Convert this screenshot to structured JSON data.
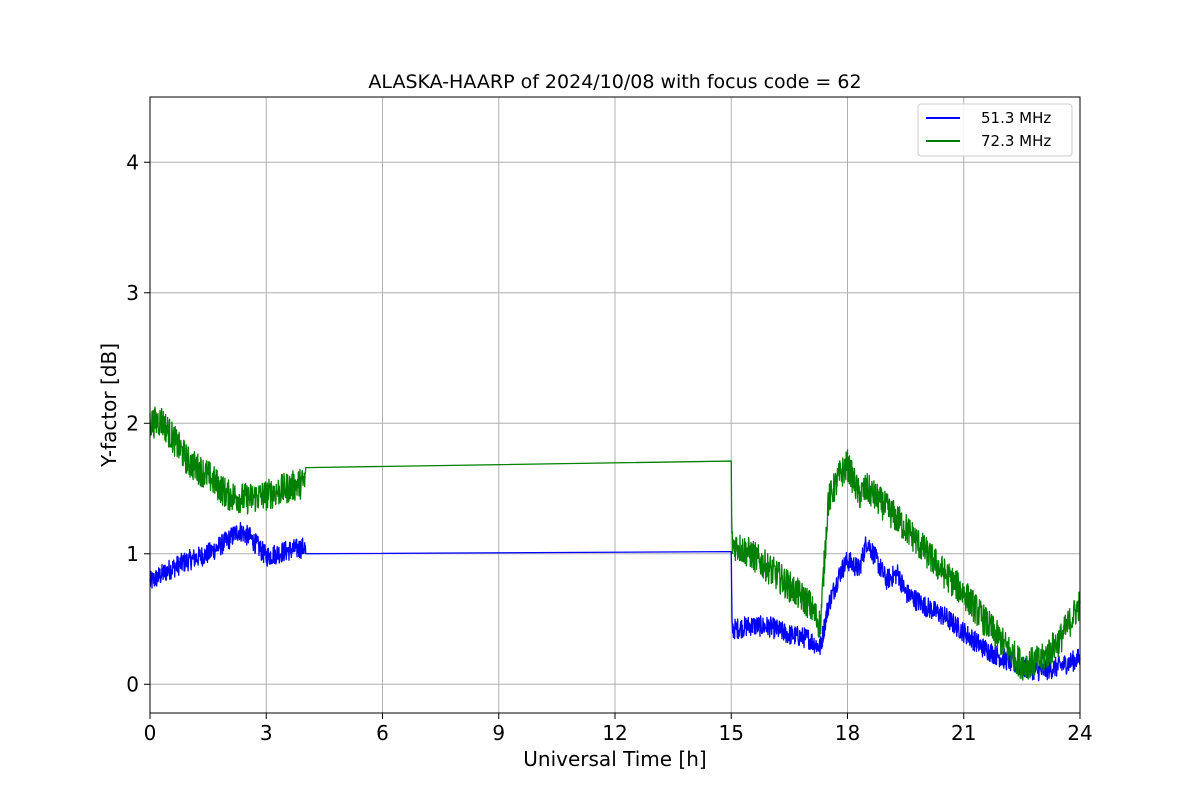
{
  "chart_data": {
    "type": "line",
    "title": "ALASKA-HAARP of 2024/10/08 with focus code = 62",
    "xlabel": "Universal Time [h]",
    "ylabel": "Y-factor [dB]",
    "xlim": [
      0,
      24
    ],
    "ylim": [
      -0.22,
      4.5
    ],
    "xticks": [
      "0",
      "3",
      "6",
      "9",
      "12",
      "15",
      "18",
      "21",
      "24"
    ],
    "yticks": [
      "0",
      "1",
      "2",
      "3",
      "4"
    ],
    "grid": true,
    "legend_position": "top-right",
    "series": [
      {
        "name": "51.3 MHz",
        "color": "#0000ff",
        "noise": 0.08,
        "x": [
          0,
          0.5,
          1,
          1.5,
          2,
          2.3,
          2.6,
          3,
          3.5,
          4,
          4.02,
          15,
          15.02,
          15.5,
          16,
          16.5,
          17,
          17.3,
          17.5,
          17.8,
          18,
          18.3,
          18.5,
          18.7,
          19,
          19.3,
          19.5,
          20,
          20.5,
          21,
          21.5,
          22,
          22.5,
          23,
          23.5,
          24
        ],
        "y": [
          0.78,
          0.88,
          0.95,
          1.0,
          1.1,
          1.18,
          1.12,
          0.98,
          1.02,
          1.05,
          1.0,
          0.99,
          0.42,
          0.45,
          0.44,
          0.38,
          0.35,
          0.28,
          0.6,
          0.85,
          0.95,
          0.88,
          1.1,
          0.98,
          0.8,
          0.85,
          0.7,
          0.6,
          0.52,
          0.4,
          0.28,
          0.2,
          0.13,
          0.1,
          0.14,
          0.2
        ]
      },
      {
        "name": "72.3 MHz",
        "color": "#008000",
        "noise": 0.12,
        "x": [
          0,
          0.3,
          0.6,
          1,
          1.5,
          2,
          2.5,
          3,
          3.5,
          4,
          4.02,
          15,
          15.02,
          15.5,
          16,
          16.5,
          17,
          17.3,
          17.5,
          17.8,
          18,
          18.3,
          18.5,
          19,
          19.5,
          20,
          20.5,
          21,
          21.5,
          22,
          22.5,
          23,
          23.5,
          24
        ],
        "y": [
          2.0,
          2.02,
          1.88,
          1.7,
          1.6,
          1.45,
          1.42,
          1.45,
          1.5,
          1.55,
          1.66,
          1.66,
          1.08,
          1.0,
          0.88,
          0.75,
          0.62,
          0.45,
          1.4,
          1.6,
          1.68,
          1.45,
          1.5,
          1.35,
          1.2,
          1.02,
          0.85,
          0.7,
          0.5,
          0.32,
          0.15,
          0.18,
          0.35,
          0.62
        ]
      }
    ]
  }
}
